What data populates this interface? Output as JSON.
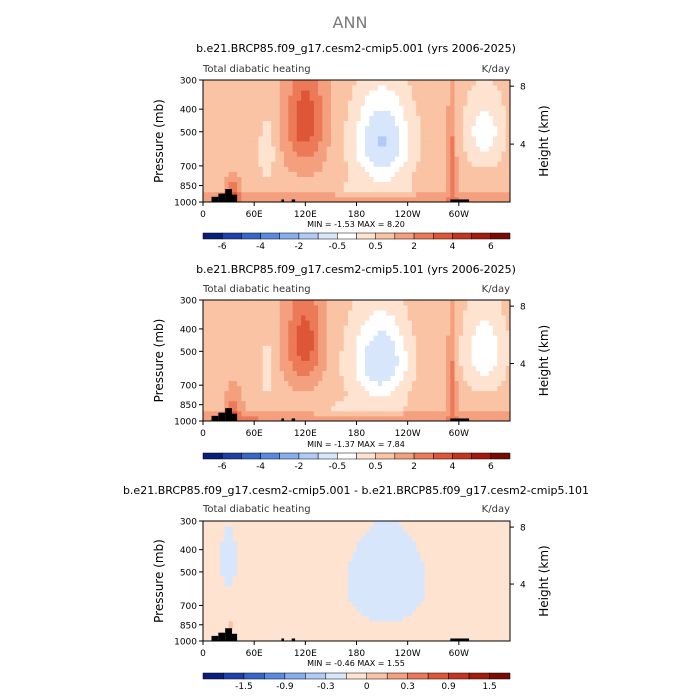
{
  "main_title": "ANN",
  "chart_data": [
    {
      "type": "heatmap",
      "title": "b.e21.BRCP85.f09_g17.cesm2-cmip5.001 (yrs 2006-2025)",
      "subtitle_left": "Total diabatic heating",
      "units": "K/day",
      "ylabel": "Pressure (mb)",
      "ylabel_right": "Height (km)",
      "x_ticks": [
        "0",
        "60E",
        "120E",
        "180",
        "120W",
        "60W"
      ],
      "x_tick_lon": [
        0,
        60,
        120,
        180,
        240,
        300
      ],
      "xlim": [
        0,
        360
      ],
      "y_ticks": [
        "300",
        "400",
        "500",
        "700",
        "850",
        "1000"
      ],
      "y_tick_values": [
        300,
        400,
        500,
        700,
        850,
        1000
      ],
      "ylim": [
        1000,
        300
      ],
      "y_scale": "log",
      "y_right_ticks": [
        "8",
        "4"
      ],
      "y_right_values": [
        8,
        4
      ],
      "stats": "MIN =  -1.53   MAX =   8.20",
      "min": -1.53,
      "max": 8.2,
      "colorbar_ticks": [
        "-6",
        "-4",
        "-2",
        "-0.5",
        "0.5",
        "2",
        "4",
        "6"
      ],
      "colorbar_colors": [
        "#0a1f7a",
        "#1f3fa8",
        "#3566c8",
        "#5a8ae0",
        "#86aeee",
        "#b2cbf6",
        "#d8e6fb",
        "#ffffff",
        "#fde3d0",
        "#f9c3a4",
        "#f4a07e",
        "#ec7a58",
        "#dd5637",
        "#c43520",
        "#a31a0c",
        "#7a0a04"
      ]
    },
    {
      "type": "heatmap",
      "title": "b.e21.BRCP85.f09_g17.cesm2-cmip5.101 (yrs 2006-2025)",
      "subtitle_left": "Total diabatic heating",
      "units": "K/day",
      "ylabel": "Pressure (mb)",
      "ylabel_right": "Height (km)",
      "x_ticks": [
        "0",
        "60E",
        "120E",
        "180",
        "120W",
        "60W"
      ],
      "x_tick_lon": [
        0,
        60,
        120,
        180,
        240,
        300
      ],
      "xlim": [
        0,
        360
      ],
      "y_ticks": [
        "300",
        "400",
        "500",
        "700",
        "850",
        "1000"
      ],
      "y_tick_values": [
        300,
        400,
        500,
        700,
        850,
        1000
      ],
      "ylim": [
        1000,
        300
      ],
      "y_scale": "log",
      "y_right_ticks": [
        "8",
        "4"
      ],
      "y_right_values": [
        8,
        4
      ],
      "stats": "MIN =  -1.37   MAX =   7.84",
      "min": -1.37,
      "max": 7.84,
      "colorbar_ticks": [
        "-6",
        "-4",
        "-2",
        "-0.5",
        "0.5",
        "2",
        "4",
        "6"
      ],
      "colorbar_colors": [
        "#0a1f7a",
        "#1f3fa8",
        "#3566c8",
        "#5a8ae0",
        "#86aeee",
        "#b2cbf6",
        "#d8e6fb",
        "#ffffff",
        "#fde3d0",
        "#f9c3a4",
        "#f4a07e",
        "#ec7a58",
        "#dd5637",
        "#c43520",
        "#a31a0c",
        "#7a0a04"
      ]
    },
    {
      "type": "heatmap",
      "title": "b.e21.BRCP85.f09_g17.cesm2-cmip5.001 - b.e21.BRCP85.f09_g17.cesm2-cmip5.101",
      "subtitle_left": "Total diabatic heating",
      "units": "K/day",
      "ylabel": "Pressure (mb)",
      "ylabel_right": "Height (km)",
      "x_ticks": [
        "0",
        "60E",
        "120E",
        "180",
        "120W",
        "60W"
      ],
      "x_tick_lon": [
        0,
        60,
        120,
        180,
        240,
        300
      ],
      "xlim": [
        0,
        360
      ],
      "y_ticks": [
        "300",
        "400",
        "500",
        "700",
        "850",
        "1000"
      ],
      "y_tick_values": [
        300,
        400,
        500,
        700,
        850,
        1000
      ],
      "ylim": [
        1000,
        300
      ],
      "y_scale": "log",
      "y_right_ticks": [
        "8",
        "4"
      ],
      "y_right_values": [
        8,
        4
      ],
      "stats": "MIN =  -0.46   MAX =   1.55",
      "min": -0.46,
      "max": 1.55,
      "colorbar_ticks": [
        "-1.5",
        "-0.9",
        "-0.3",
        "0",
        "0.3",
        "0.9",
        "1.5"
      ],
      "colorbar_colors": [
        "#0a1f7a",
        "#1f3fa8",
        "#3566c8",
        "#5a8ae0",
        "#86aeee",
        "#b2cbf6",
        "#d8e6fb",
        "#fde3d0",
        "#f9c3a4",
        "#f4a07e",
        "#ec7a58",
        "#dd5637",
        "#c43520",
        "#a31a0c",
        "#7a0a04"
      ]
    }
  ]
}
